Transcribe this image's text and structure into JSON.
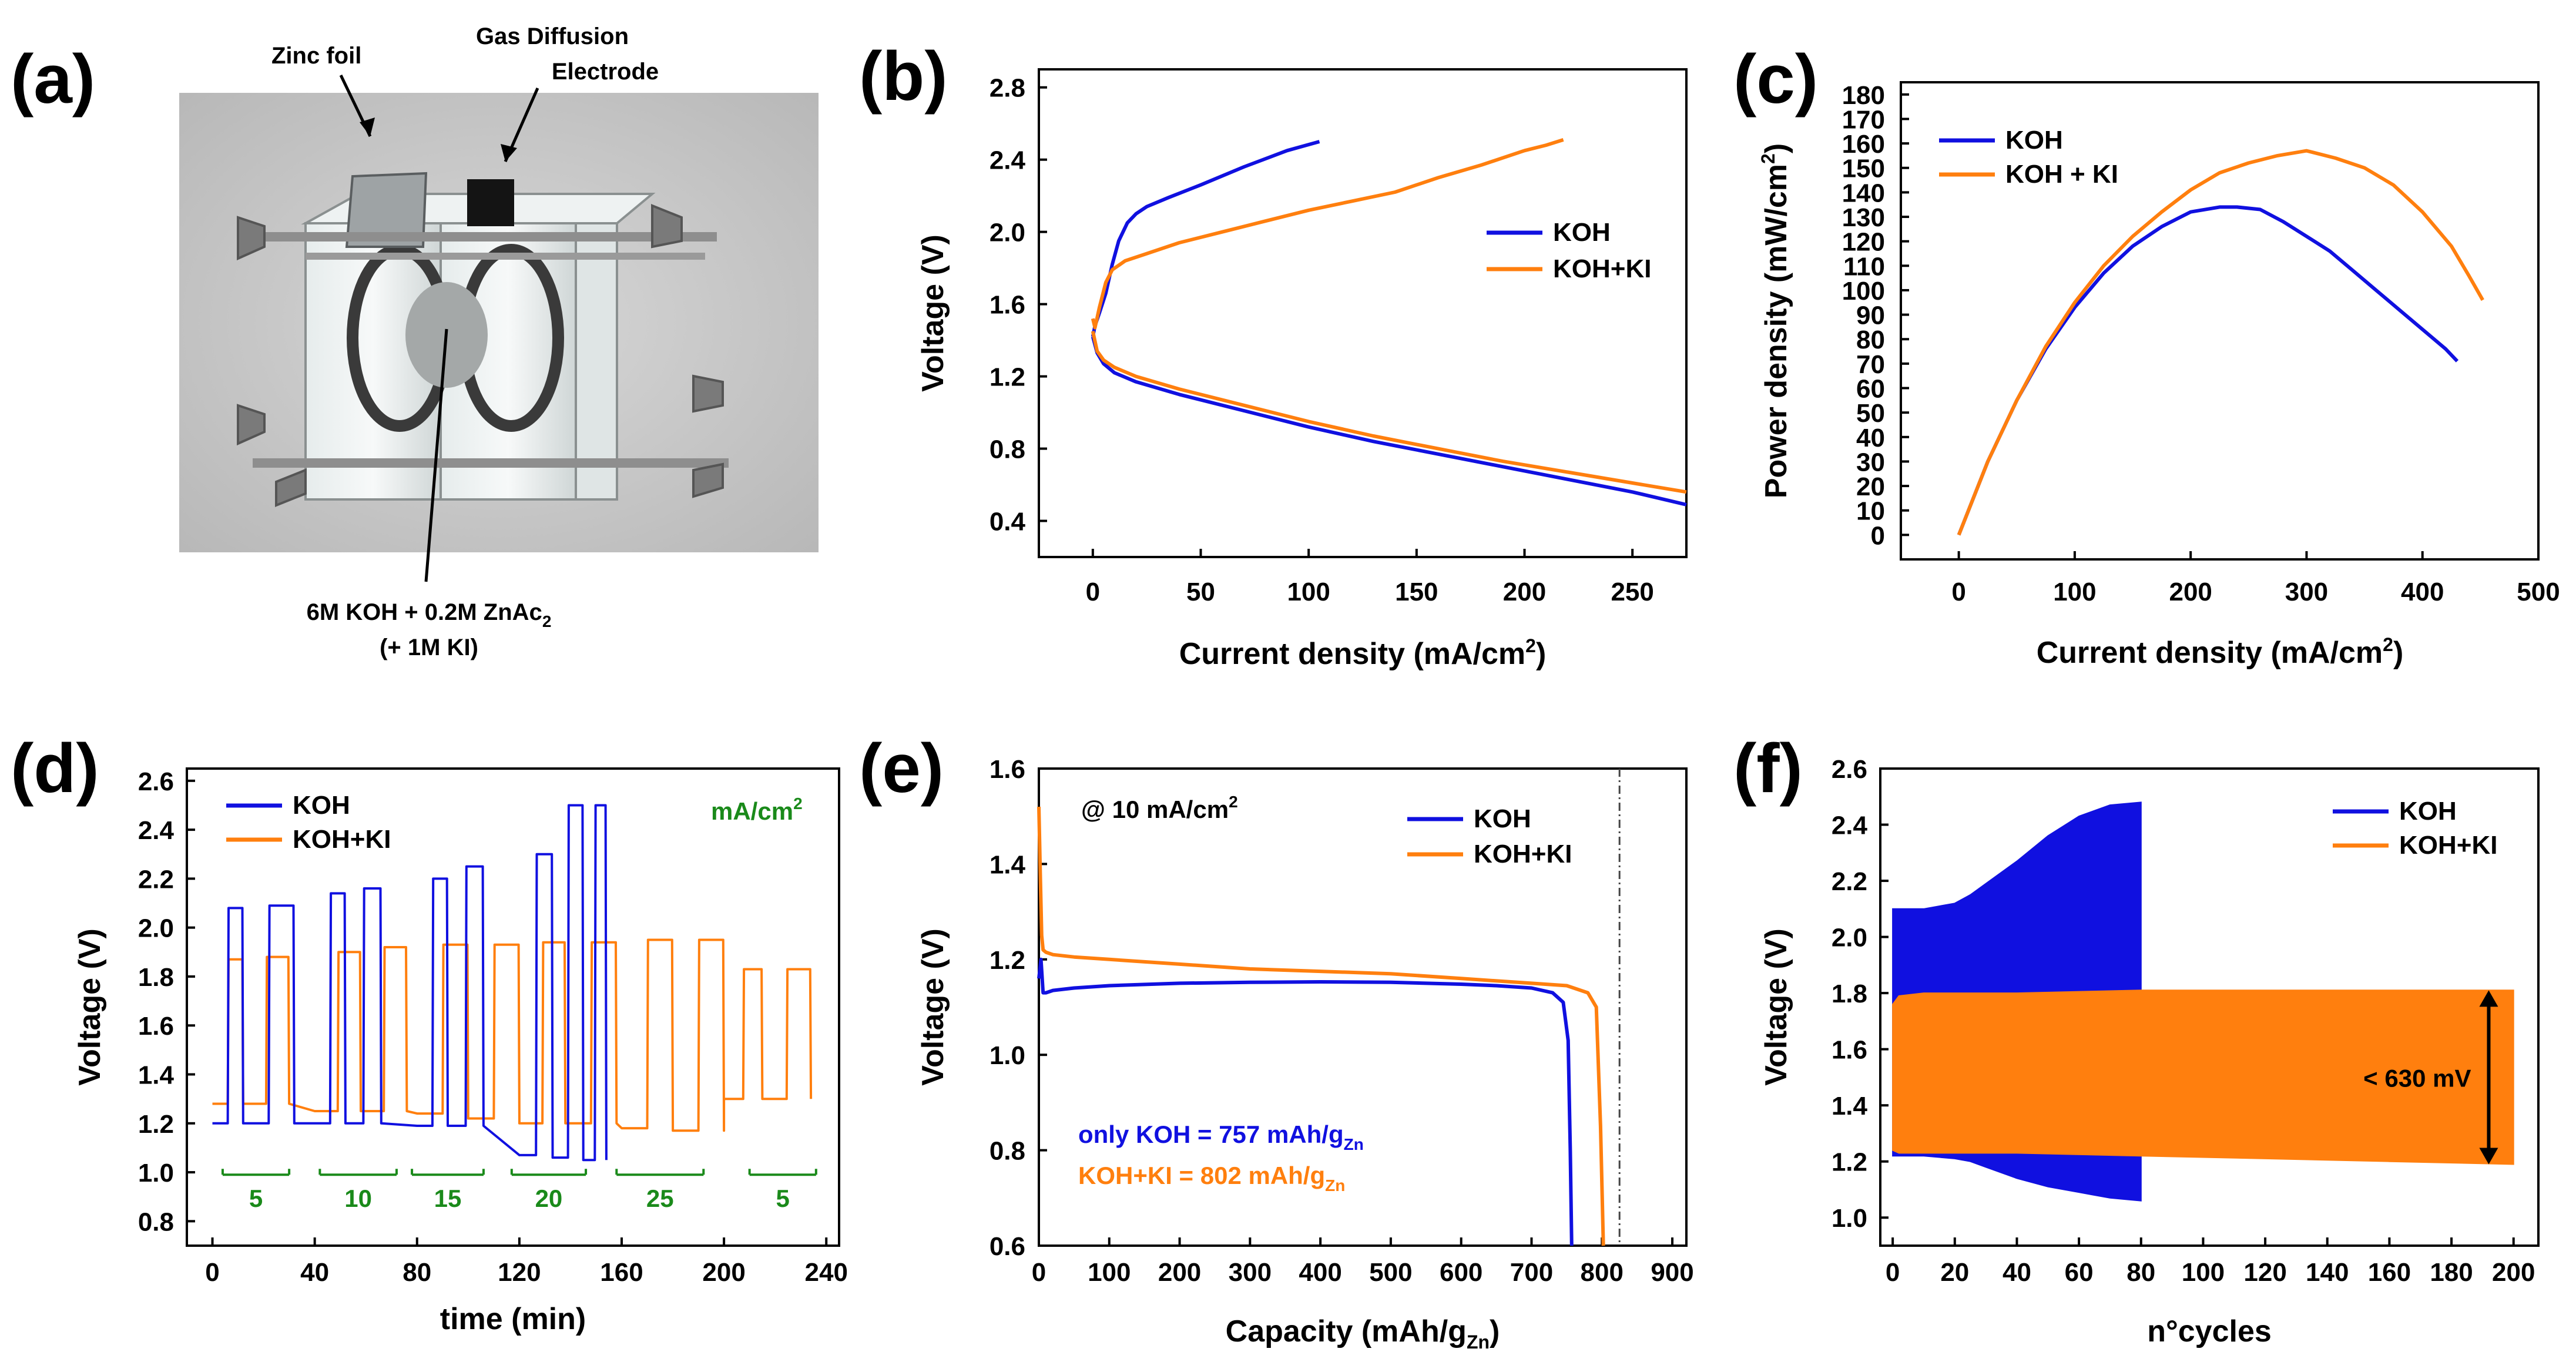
{
  "panels": {
    "a": {
      "label": "(a)",
      "callouts": {
        "zinc": "Zinc foil",
        "gde_line1": "Gas Diffusion",
        "gde_line2": "Electrode",
        "electrolyte_line1_pre": "6M KOH + 0.2M ZnAc",
        "electrolyte_line1_sub": "2",
        "electrolyte_line2": "(+ 1M KI)"
      }
    },
    "b": {
      "label": "(b)"
    },
    "c": {
      "label": "(c)"
    },
    "d": {
      "label": "(d)"
    },
    "e": {
      "label": "(e)"
    },
    "f": {
      "label": "(f)"
    }
  },
  "colors": {
    "koh": "#1010e0",
    "kohki": "#ff7f0e",
    "green": "#1a8a1a",
    "photo_bg": "#cfcfcf"
  },
  "chart_data": [
    {
      "id": "b",
      "type": "line",
      "xlabel": "Current density (mA/cm",
      "xlabel_sup": "2",
      "xlabel_end": ")",
      "ylabel": "Voltage (V)",
      "xlim": [
        -25,
        275
      ],
      "ylim": [
        0.2,
        2.9
      ],
      "xticks": [
        0,
        50,
        100,
        150,
        200,
        250
      ],
      "yticks": [
        0.4,
        0.8,
        1.2,
        1.6,
        2.0,
        2.4,
        2.8
      ],
      "xtick_labels": [
        "0",
        "50",
        "100",
        "150",
        "200",
        "250"
      ],
      "ytick_labels": [
        "0.4",
        "0.8",
        "1.2",
        "1.6",
        "2.0",
        "2.4",
        "2.8"
      ],
      "legend": [
        "KOH",
        "KOH+KI"
      ],
      "series": [
        {
          "name": "KOH charge",
          "x": [
            0,
            1,
            3,
            6,
            9,
            12,
            16,
            20,
            25,
            35,
            50,
            70,
            90,
            105
          ],
          "y": [
            1.42,
            1.48,
            1.55,
            1.66,
            1.82,
            1.95,
            2.05,
            2.1,
            2.14,
            2.19,
            2.26,
            2.36,
            2.45,
            2.5
          ]
        },
        {
          "name": "KOH discharge",
          "x": [
            0,
            2,
            5,
            10,
            20,
            40,
            70,
            100,
            130,
            160,
            190,
            220,
            250,
            275
          ],
          "y": [
            1.42,
            1.33,
            1.27,
            1.22,
            1.17,
            1.1,
            1.01,
            0.92,
            0.84,
            0.77,
            0.7,
            0.63,
            0.56,
            0.49
          ]
        },
        {
          "name": "KOH+KI charge",
          "x": [
            0,
            1,
            3,
            6,
            9,
            15,
            25,
            40,
            60,
            80,
            100,
            120,
            140,
            160,
            180,
            200,
            210,
            218
          ],
          "y": [
            1.52,
            1.47,
            1.58,
            1.72,
            1.79,
            1.84,
            1.88,
            1.94,
            2.0,
            2.06,
            2.12,
            2.17,
            2.22,
            2.3,
            2.37,
            2.45,
            2.48,
            2.51
          ]
        },
        {
          "name": "KOH+KI discharge",
          "x": [
            0,
            2,
            5,
            10,
            20,
            40,
            70,
            100,
            130,
            160,
            190,
            220,
            250,
            275
          ],
          "y": [
            1.45,
            1.34,
            1.29,
            1.25,
            1.2,
            1.13,
            1.04,
            0.95,
            0.87,
            0.8,
            0.73,
            0.67,
            0.61,
            0.56
          ]
        }
      ]
    },
    {
      "id": "c",
      "type": "line",
      "xlabel": "Current density (mA/cm",
      "xlabel_sup": "2",
      "xlabel_end": ")",
      "ylabel": "Power density (mW/cm",
      "ylabel_sup": "2",
      "ylabel_end": ")",
      "xlim": [
        -50,
        500
      ],
      "ylim": [
        -10,
        185
      ],
      "xticks": [
        0,
        100,
        200,
        300,
        400,
        500
      ],
      "yticks": [
        0,
        10,
        20,
        30,
        40,
        50,
        60,
        70,
        80,
        90,
        100,
        110,
        120,
        130,
        140,
        150,
        160,
        170,
        180
      ],
      "xtick_labels": [
        "0",
        "100",
        "200",
        "300",
        "400",
        "500"
      ],
      "ytick_labels": [
        "0",
        "10",
        "20",
        "30",
        "40",
        "50",
        "60",
        "70",
        "80",
        "90",
        "100",
        "110",
        "120",
        "130",
        "140",
        "150",
        "160",
        "170",
        "180"
      ],
      "legend": [
        "KOH",
        "KOH + KI"
      ],
      "series": [
        {
          "name": "KOH",
          "x": [
            0,
            25,
            50,
            75,
            100,
            125,
            150,
            175,
            200,
            225,
            240,
            260,
            280,
            300,
            320,
            340,
            360,
            380,
            400,
            420,
            430
          ],
          "y": [
            0,
            30,
            55,
            76,
            93,
            107,
            118,
            126,
            132,
            134,
            134,
            133,
            128,
            122,
            116,
            108,
            100,
            92,
            84,
            76,
            71
          ]
        },
        {
          "name": "KOH + KI",
          "x": [
            0,
            25,
            50,
            75,
            100,
            125,
            150,
            175,
            200,
            225,
            250,
            275,
            300,
            325,
            350,
            375,
            400,
            425,
            440,
            452
          ],
          "y": [
            0,
            30,
            55,
            77,
            95,
            110,
            122,
            132,
            141,
            148,
            152,
            155,
            157,
            154,
            150,
            143,
            132,
            118,
            106,
            96
          ]
        }
      ]
    },
    {
      "id": "d",
      "type": "line",
      "xlabel": "time (min)",
      "ylabel": "Voltage (V)",
      "xlim": [
        -10,
        245
      ],
      "ylim": [
        0.7,
        2.65
      ],
      "xticks": [
        0,
        40,
        80,
        120,
        160,
        200,
        240
      ],
      "yticks": [
        0.8,
        1.0,
        1.2,
        1.4,
        1.6,
        1.8,
        2.0,
        2.2,
        2.4,
        2.6
      ],
      "xtick_labels": [
        "0",
        "40",
        "80",
        "120",
        "160",
        "200",
        "240"
      ],
      "ytick_labels": [
        "0.8",
        "1.0",
        "1.2",
        "1.4",
        "1.6",
        "1.8",
        "2.0",
        "2.2",
        "2.4",
        "2.6"
      ],
      "legend": [
        "KOH",
        "KOH+KI"
      ],
      "unit_label": "mA/cm",
      "unit_sup": "2",
      "step_labels": [
        "5",
        "10",
        "15",
        "20",
        "25",
        "5"
      ],
      "step_ranges": [
        [
          4,
          30
        ],
        [
          42,
          72
        ],
        [
          78,
          106
        ],
        [
          117,
          146
        ],
        [
          158,
          192
        ],
        [
          210,
          236
        ]
      ],
      "koh_segments": [
        {
          "t0": 0,
          "t1": 12,
          "vd": 1.2,
          "vc": 2.08
        },
        {
          "t0": 12,
          "t1": 32,
          "vd": 1.2,
          "vc": 2.09
        },
        {
          "t0": 40,
          "t1": 52,
          "vd": 1.2,
          "vc": 2.14
        },
        {
          "t0": 52,
          "t1": 66,
          "vd": 1.2,
          "vc": 2.16
        },
        {
          "t0": 80,
          "t1": 92,
          "vd": 1.19,
          "vc": 2.2
        },
        {
          "t0": 92,
          "t1": 106,
          "vd": 1.19,
          "vc": 2.25
        },
        {
          "t0": 120,
          "t1": 133,
          "vd": 1.07,
          "vc": 2.3
        },
        {
          "t0": 133,
          "t1": 145,
          "vd": 1.06,
          "vc": 2.5
        },
        {
          "t0": 145,
          "t1": 154,
          "vd": 1.05,
          "vc": 2.5
        }
      ],
      "kohki_segments": [
        {
          "t0": 0,
          "t1": 12,
          "vd": 1.28,
          "vc": 1.87
        },
        {
          "t0": 12,
          "t1": 30,
          "vd": 1.28,
          "vc": 1.88
        },
        {
          "t0": 40,
          "t1": 58,
          "vd": 1.25,
          "vc": 1.9
        },
        {
          "t0": 58,
          "t1": 76,
          "vd": 1.25,
          "vc": 1.92
        },
        {
          "t0": 80,
          "t1": 100,
          "vd": 1.24,
          "vc": 1.93
        },
        {
          "t0": 100,
          "t1": 120,
          "vd": 1.22,
          "vc": 1.93
        },
        {
          "t0": 120,
          "t1": 138,
          "vd": 1.2,
          "vc": 1.94
        },
        {
          "t0": 138,
          "t1": 158,
          "vd": 1.2,
          "vc": 1.94
        },
        {
          "t0": 160,
          "t1": 180,
          "vd": 1.18,
          "vc": 1.95
        },
        {
          "t0": 180,
          "t1": 200,
          "vd": 1.17,
          "vc": 1.95
        },
        {
          "t0": 200,
          "t1": 215,
          "vd": 1.3,
          "vc": 1.83
        },
        {
          "t0": 215,
          "t1": 234,
          "vd": 1.3,
          "vc": 1.83
        }
      ]
    },
    {
      "id": "e",
      "type": "line",
      "xlabel": "Capacity (mAh/g",
      "xlabel_sub": "Zn",
      "xlabel_end": ")",
      "ylabel": "Voltage (V)",
      "xlim": [
        0,
        920
      ],
      "ylim": [
        0.6,
        1.6
      ],
      "xticks": [
        0,
        100,
        200,
        300,
        400,
        500,
        600,
        700,
        800,
        900
      ],
      "yticks": [
        0.6,
        0.8,
        1.0,
        1.2,
        1.4,
        1.6
      ],
      "xtick_labels": [
        "0",
        "100",
        "200",
        "300",
        "400",
        "500",
        "600",
        "700",
        "800",
        "900"
      ],
      "ytick_labels": [
        "0.6",
        "0.8",
        "1.0",
        "1.2",
        "1.4",
        "1.6"
      ],
      "legend": [
        "KOH",
        "KOH+KI"
      ],
      "condition_pre": "@ 10 mA/cm",
      "condition_sup": "2",
      "note_koh_pre": "only KOH = 757 mAh/g",
      "note_koh_sub": "Zn",
      "note_kohki_pre": "KOH+KI = 802 mAh/g",
      "note_kohki_sub": "Zn",
      "vline_x": 825,
      "series": [
        {
          "name": "KOH",
          "x": [
            0,
            3,
            6,
            10,
            20,
            50,
            100,
            200,
            300,
            400,
            500,
            600,
            650,
            700,
            730,
            745,
            752,
            755,
            757
          ],
          "y": [
            1.16,
            1.2,
            1.13,
            1.13,
            1.135,
            1.14,
            1.145,
            1.15,
            1.152,
            1.153,
            1.152,
            1.148,
            1.145,
            1.14,
            1.13,
            1.11,
            1.03,
            0.8,
            0.6
          ]
        },
        {
          "name": "KOH+KI",
          "x": [
            0,
            2,
            4,
            6,
            10,
            20,
            50,
            100,
            200,
            300,
            400,
            500,
            600,
            700,
            750,
            780,
            792,
            798,
            802
          ],
          "y": [
            1.52,
            1.38,
            1.25,
            1.22,
            1.215,
            1.21,
            1.205,
            1.2,
            1.19,
            1.18,
            1.175,
            1.17,
            1.16,
            1.15,
            1.145,
            1.13,
            1.1,
            0.85,
            0.6
          ]
        }
      ]
    },
    {
      "id": "f",
      "type": "area",
      "xlabel": "n°cycles",
      "ylabel": "Voltage (V)",
      "xlim": [
        -4,
        208
      ],
      "ylim": [
        0.9,
        2.6
      ],
      "xticks": [
        0,
        20,
        40,
        60,
        80,
        100,
        120,
        140,
        160,
        180,
        200
      ],
      "yticks": [
        1.0,
        1.2,
        1.4,
        1.6,
        1.8,
        2.0,
        2.2,
        2.4,
        2.6
      ],
      "xtick_labels": [
        "0",
        "20",
        "40",
        "60",
        "80",
        "100",
        "120",
        "140",
        "160",
        "180",
        "200"
      ],
      "ytick_labels": [
        "1.0",
        "1.2",
        "1.4",
        "1.6",
        "1.8",
        "2.0",
        "2.2",
        "2.4",
        "2.6"
      ],
      "legend": [
        "KOH",
        "KOH+KI"
      ],
      "annotation": "< 630 mV",
      "arrow_range": [
        1.19,
        1.81
      ],
      "series": [
        {
          "name": "KOH upper",
          "x": [
            0,
            10,
            20,
            25,
            30,
            40,
            50,
            60,
            70,
            80
          ],
          "y": [
            2.1,
            2.1,
            2.12,
            2.15,
            2.19,
            2.27,
            2.36,
            2.43,
            2.47,
            2.48
          ]
        },
        {
          "name": "KOH lower",
          "x": [
            0,
            10,
            20,
            25,
            30,
            40,
            50,
            60,
            70,
            80
          ],
          "y": [
            1.22,
            1.22,
            1.21,
            1.2,
            1.18,
            1.14,
            1.11,
            1.09,
            1.07,
            1.06
          ]
        },
        {
          "name": "KOH+KI upper",
          "x": [
            0,
            2,
            10,
            40,
            80,
            120,
            160,
            200
          ],
          "y": [
            1.76,
            1.79,
            1.8,
            1.8,
            1.81,
            1.81,
            1.81,
            1.81
          ]
        },
        {
          "name": "KOH+KI lower",
          "x": [
            0,
            2,
            10,
            40,
            80,
            120,
            160,
            200
          ],
          "y": [
            1.24,
            1.23,
            1.23,
            1.23,
            1.22,
            1.21,
            1.2,
            1.19
          ]
        }
      ]
    }
  ]
}
